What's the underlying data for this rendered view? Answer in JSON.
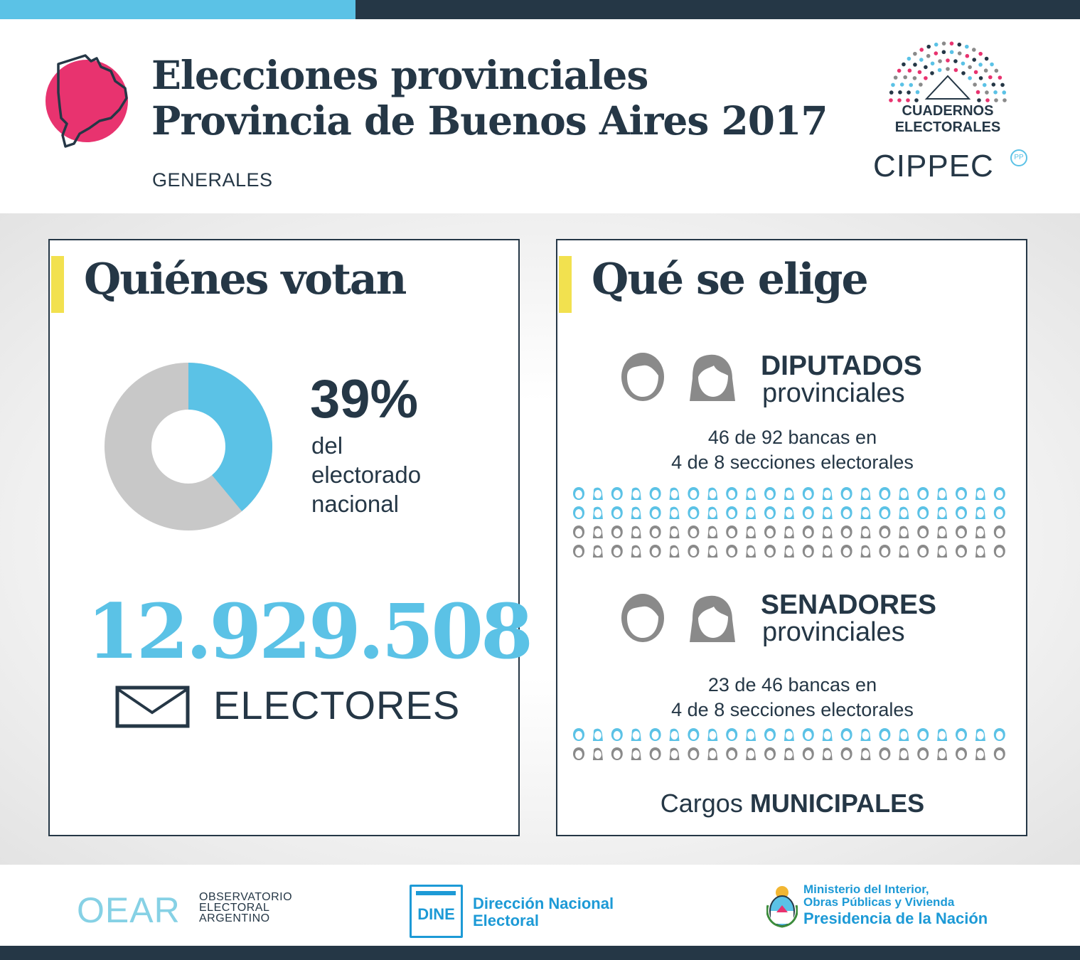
{
  "header": {
    "title_line1": "Elecciones provinciales",
    "title_line2": "Provincia de Buenos Aires 2017",
    "subtitle": "GENERALES",
    "cuadernos_line1": "CUADERNOS",
    "cuadernos_line2": "ELECTORALES",
    "cippec": "CIPPEC",
    "cippec_badge": "PP"
  },
  "left": {
    "title": "Quiénes votan",
    "percent": "39%",
    "percent_value": 39,
    "percent_label_1": "del",
    "percent_label_2": "electorado",
    "percent_label_3": "nacional",
    "electors_number": "12.929.508",
    "electors_label": "ELECTORES"
  },
  "right": {
    "title": "Qué se elige",
    "diputados_bold": "DIPUTADOS",
    "diputados_light": "provinciales",
    "diputados_line1": "46 de 92 bancas en",
    "diputados_line2": "4 de 8 secciones electorales",
    "diputados_elected": 46,
    "diputados_total": 92,
    "senadores_bold": "SENADORES",
    "senadores_light": "provinciales",
    "senadores_line1": "23 de 46 bancas en",
    "senadores_line2": "4 de 8 secciones electorales",
    "senadores_elected": 23,
    "senadores_total": 46,
    "cargos_prefix": "Cargos",
    "cargos_bold": "MUNICIPALES"
  },
  "footer": {
    "oear_logo": "OEAR",
    "oear_l1": "OBSERVATORIO",
    "oear_l2": "ELECTORAL",
    "oear_l3": "ARGENTINO",
    "dine_logo": "DINE",
    "dine_l1": "Dirección Nacional",
    "dine_l2": "Electoral",
    "min_l1": "Ministerio del Interior,",
    "min_l2": "Obras Públicas y Vivienda",
    "min_l3": "Presidencia de la Nación"
  },
  "colors": {
    "dark": "#253746",
    "blue": "#5bc2e6",
    "gray": "#c8c8c8",
    "pink": "#e8336f",
    "yellow": "#f2e14f",
    "icon_gray": "#8a8a8a"
  }
}
